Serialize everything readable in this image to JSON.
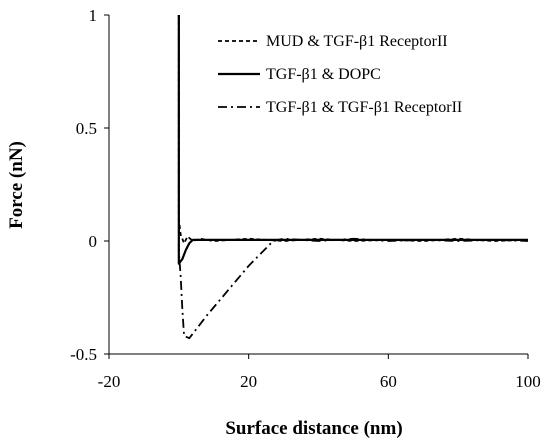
{
  "chart_data": {
    "type": "line",
    "title": "",
    "xlabel": "Surface distance (nm)",
    "ylabel": "Force (nN)",
    "xlim": [
      -20,
      100
    ],
    "ylim": [
      -0.5,
      1
    ],
    "xticks": [
      -20,
      20,
      60,
      100
    ],
    "yticks": [
      -0.5,
      0,
      0.5,
      1
    ],
    "xtick_labels": [
      "-20",
      "20",
      "60",
      "100"
    ],
    "ytick_labels": [
      "-0.5",
      "0",
      "0.5",
      "1"
    ],
    "grid": false,
    "legend_position": "top-right",
    "series": [
      {
        "name": "MUD & TGF-β1 ReceptorII",
        "style": "dashed",
        "color": "#000000",
        "points": [
          [
            0,
            1.0
          ],
          [
            0,
            0.5
          ],
          [
            0,
            0.1
          ],
          [
            0.5,
            0.03
          ],
          [
            1.5,
            -0.01
          ],
          [
            2.5,
            0.02
          ],
          [
            4,
            0.0
          ],
          [
            6,
            0.01
          ],
          [
            10,
            0.0
          ],
          [
            20,
            0.01
          ],
          [
            30,
            0.0
          ],
          [
            40,
            0.01
          ],
          [
            50,
            0.0
          ],
          [
            60,
            0.005
          ],
          [
            70,
            0.0
          ],
          [
            80,
            0.01
          ],
          [
            90,
            0.0
          ],
          [
            100,
            0.005
          ]
        ]
      },
      {
        "name": "TGF-β1 & DOPC",
        "style": "solid",
        "color": "#000000",
        "points": [
          [
            0,
            1.0
          ],
          [
            0,
            0.3
          ],
          [
            0,
            0.0
          ],
          [
            0,
            -0.1
          ],
          [
            1,
            -0.08
          ],
          [
            2,
            -0.04
          ],
          [
            3,
            -0.01
          ],
          [
            4,
            0.005
          ],
          [
            10,
            0.005
          ],
          [
            20,
            0.005
          ],
          [
            30,
            0.005
          ],
          [
            40,
            0.005
          ],
          [
            50,
            0.005
          ],
          [
            60,
            0.005
          ],
          [
            70,
            0.005
          ],
          [
            80,
            0.005
          ],
          [
            90,
            0.005
          ],
          [
            100,
            0.005
          ]
        ]
      },
      {
        "name": "TGF-β1 & TGF-β1 ReceptorII",
        "style": "dashdot",
        "color": "#000000",
        "points": [
          [
            0,
            1.0
          ],
          [
            0,
            0.6
          ],
          [
            0,
            0.2
          ],
          [
            0,
            -0.05
          ],
          [
            0.5,
            -0.15
          ],
          [
            1,
            -0.3
          ],
          [
            1.5,
            -0.42
          ],
          [
            3,
            -0.43
          ],
          [
            8,
            -0.33
          ],
          [
            14,
            -0.22
          ],
          [
            20,
            -0.11
          ],
          [
            27,
            0.0
          ],
          [
            30,
            0.01
          ],
          [
            40,
            0.0
          ],
          [
            50,
            0.01
          ],
          [
            60,
            0.0
          ],
          [
            70,
            0.005
          ],
          [
            80,
            0.0
          ],
          [
            90,
            0.005
          ],
          [
            100,
            0.0
          ]
        ]
      }
    ]
  }
}
